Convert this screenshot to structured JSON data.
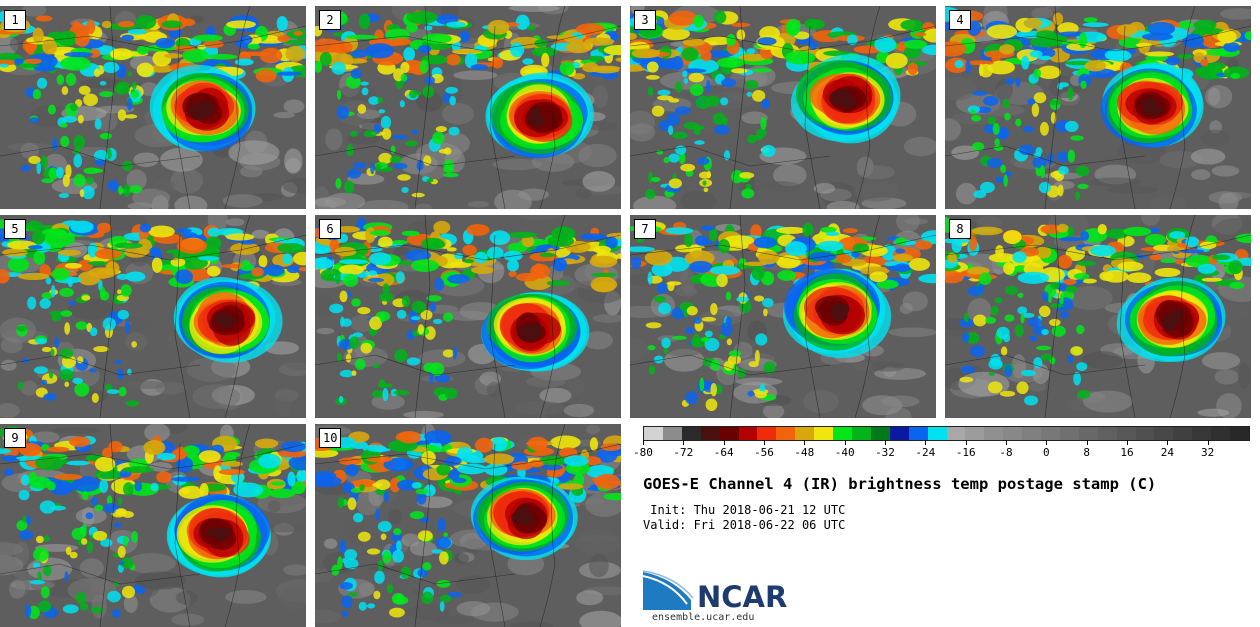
{
  "panels": [
    {
      "label": "1"
    },
    {
      "label": "2"
    },
    {
      "label": "3"
    },
    {
      "label": "4"
    },
    {
      "label": "5"
    },
    {
      "label": "6"
    },
    {
      "label": "7"
    },
    {
      "label": "8"
    },
    {
      "label": "9"
    },
    {
      "label": "10"
    }
  ],
  "colorbar": {
    "colors": [
      "#d3d3d3",
      "#8c8c8c",
      "#2a2a2a",
      "#4a1010",
      "#6b0000",
      "#b30000",
      "#ee2c0c",
      "#f2640c",
      "#d6a80c",
      "#f0e60c",
      "#00e61a",
      "#00b41a",
      "#007a1a",
      "#0a1aa0",
      "#0a64f0",
      "#00e1f0",
      "#a8a8a8",
      "#9c9c9c",
      "#909090",
      "#888888",
      "#808080",
      "#787878",
      "#707070",
      "#686868",
      "#606060",
      "#585858",
      "#505050",
      "#484848",
      "#404040",
      "#383838",
      "#303030",
      "#282828"
    ],
    "tick_labels": [
      "-80",
      "-72",
      "-64",
      "-56",
      "-48",
      "-40",
      "-32",
      "-24",
      "-16",
      "-8",
      "0",
      "8",
      "16",
      "24",
      "32"
    ],
    "tick_values": [
      -80,
      -72,
      -64,
      -56,
      -48,
      -40,
      -32,
      -24,
      -16,
      -8,
      0,
      8,
      16,
      24,
      32
    ],
    "range": [
      -80,
      40
    ]
  },
  "title": "GOES-E Channel 4 (IR) brightness temp postage stamp (C)",
  "init": " Init: Thu 2018-06-21 12 UTC",
  "valid": "Valid: Fri 2018-06-22 06 UTC",
  "logo": {
    "text": "NCAR",
    "url": "ensemble.ucar.edu",
    "brand_color": "#1d3b6e",
    "accent": "#1f7bc1"
  }
}
